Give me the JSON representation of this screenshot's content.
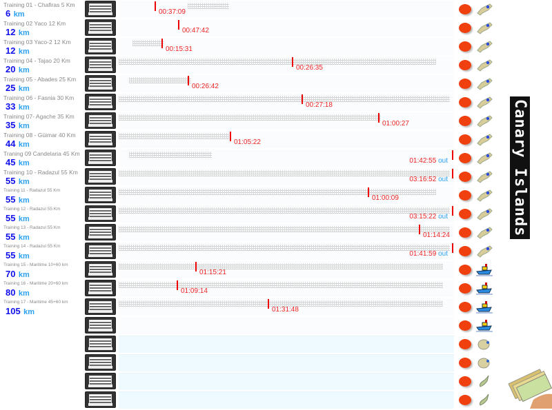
{
  "colors": {
    "time": "#e22222",
    "km_number": "#1010ee",
    "km_unit": "#2aa0f0",
    "dot": "#f04010"
  },
  "side_title": "Canary Islands",
  "trainings": [
    {
      "title": "Training 01 - Chafiras 5 Km",
      "km": "6",
      "unit": "km",
      "time": "00:37:09",
      "out": "",
      "icon": "island-icon"
    },
    {
      "title": "Training 02 Yaco 12 Km",
      "km": "12",
      "unit": "km",
      "time": "00:47:42",
      "out": "",
      "icon": "island-icon"
    },
    {
      "title": "Training 03 Yaco-2 12 Km",
      "km": "12",
      "unit": "km",
      "time": "00:15:31",
      "out": "",
      "icon": "island-icon"
    },
    {
      "title": "Training 04 - Tajao 20 Km",
      "km": "20",
      "unit": "km",
      "time": "00:26:35",
      "out": "",
      "icon": "island-icon"
    },
    {
      "title": "Training 05 - Abades 25 Km",
      "km": "25",
      "unit": "km",
      "time": "00:26:42",
      "out": "",
      "icon": "island-icon"
    },
    {
      "title": "Training 06 - Fasnia 30 Km",
      "km": "33",
      "unit": "km",
      "time": "00:27:18",
      "out": "",
      "icon": "island-icon"
    },
    {
      "title": "Training 07- Agache 35 Km",
      "km": "35",
      "unit": "km",
      "time": "01:00:27",
      "out": "",
      "icon": "island-icon"
    },
    {
      "title": "Training 08 - Güimar 40 Km",
      "km": "44",
      "unit": "km",
      "time": "01:05:22",
      "out": "",
      "icon": "island-icon"
    },
    {
      "title": "Traning 09 Candelaria 45 Km",
      "km": "45",
      "unit": "km",
      "time": "01:42:55",
      "out": "out",
      "icon": "island-icon"
    },
    {
      "title": "Training 10 - Radazul 55 Km",
      "km": "55",
      "unit": "km",
      "time": "03:16:52",
      "out": "out",
      "icon": "island-icon"
    },
    {
      "title": "Training 11 - Radazul  55 Km",
      "km": "55",
      "unit": "km",
      "time": "01:00:09",
      "out": "",
      "icon": "island-icon"
    },
    {
      "title": "Training 12 - Radazul  55 Km",
      "km": "55",
      "unit": "km",
      "time": "03:15:22",
      "out": "out",
      "icon": "island-icon"
    },
    {
      "title": "Training 13 - Radazul  55 Km",
      "km": "55",
      "unit": "km",
      "time": "01:14:24",
      "out": "",
      "icon": "island-icon"
    },
    {
      "title": "Training 14 - Radazul  55 Km",
      "km": "55",
      "unit": "km",
      "time": "01:41:59",
      "out": "out",
      "icon": "island-icon"
    },
    {
      "title": "Training 15 - Maritime 10+60 km",
      "km": "70",
      "unit": "km",
      "time": "01:15:21",
      "out": "",
      "icon": "boat-icon"
    },
    {
      "title": "Training 16 - Maritime 20+60 km",
      "km": "80",
      "unit": "km",
      "time": "01:09:14",
      "out": "",
      "icon": "boat-icon"
    },
    {
      "title": "Training 17 - Maritime 45+60 km",
      "km": "105",
      "unit": "km",
      "time": "01:31:48",
      "out": "",
      "icon": "boat-icon"
    },
    {
      "title": "",
      "km": "",
      "unit": "",
      "time": "",
      "out": "",
      "icon": "boat-icon"
    },
    {
      "title": "",
      "km": "",
      "unit": "",
      "time": "",
      "out": "",
      "icon": "small-island-icon"
    },
    {
      "title": "",
      "km": "",
      "unit": "",
      "time": "",
      "out": "",
      "icon": "small-island-icon"
    },
    {
      "title": "",
      "km": "",
      "unit": "",
      "time": "",
      "out": "",
      "icon": "long-island-icon"
    },
    {
      "title": "",
      "km": "",
      "unit": "",
      "time": "",
      "out": "",
      "icon": "long-island-icon"
    }
  ]
}
